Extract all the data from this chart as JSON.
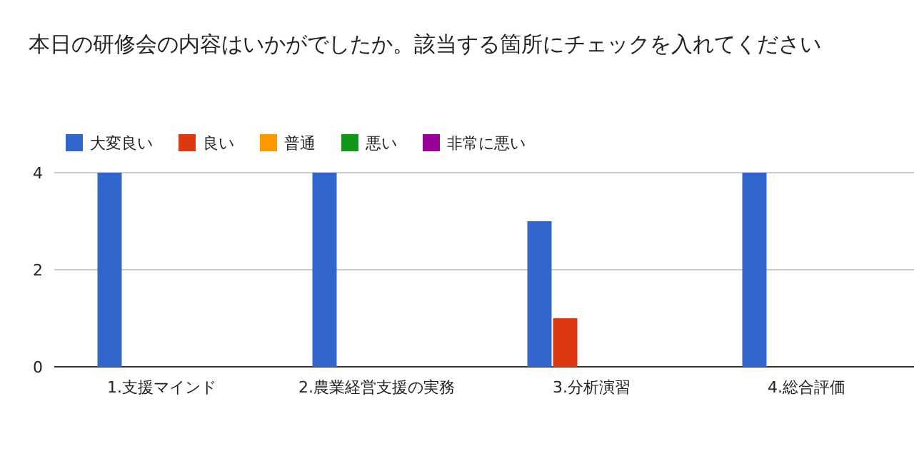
{
  "chart_data": {
    "type": "bar",
    "title": "本日の研修会の内容はいかがでしたか。該当する箇所にチェックを入れてください",
    "categories": [
      "1.支援マインド",
      "2.農業経営支援の実務",
      "3.分析演習",
      "4.総合評価"
    ],
    "series": [
      {
        "name": "大変良い",
        "color": "#3366cc",
        "values": [
          4,
          4,
          3,
          4
        ]
      },
      {
        "name": "良い",
        "color": "#dc3912",
        "values": [
          0,
          0,
          1,
          0
        ]
      },
      {
        "name": "普通",
        "color": "#ff9900",
        "values": [
          0,
          0,
          0,
          0
        ]
      },
      {
        "name": "悪い",
        "color": "#109618",
        "values": [
          0,
          0,
          0,
          0
        ]
      },
      {
        "name": "非常に悪い",
        "color": "#990099",
        "values": [
          0,
          0,
          0,
          0
        ]
      }
    ],
    "ylim": [
      0,
      4
    ],
    "yticks": [
      0,
      2,
      4
    ],
    "grid": "y",
    "legend": "top left"
  }
}
